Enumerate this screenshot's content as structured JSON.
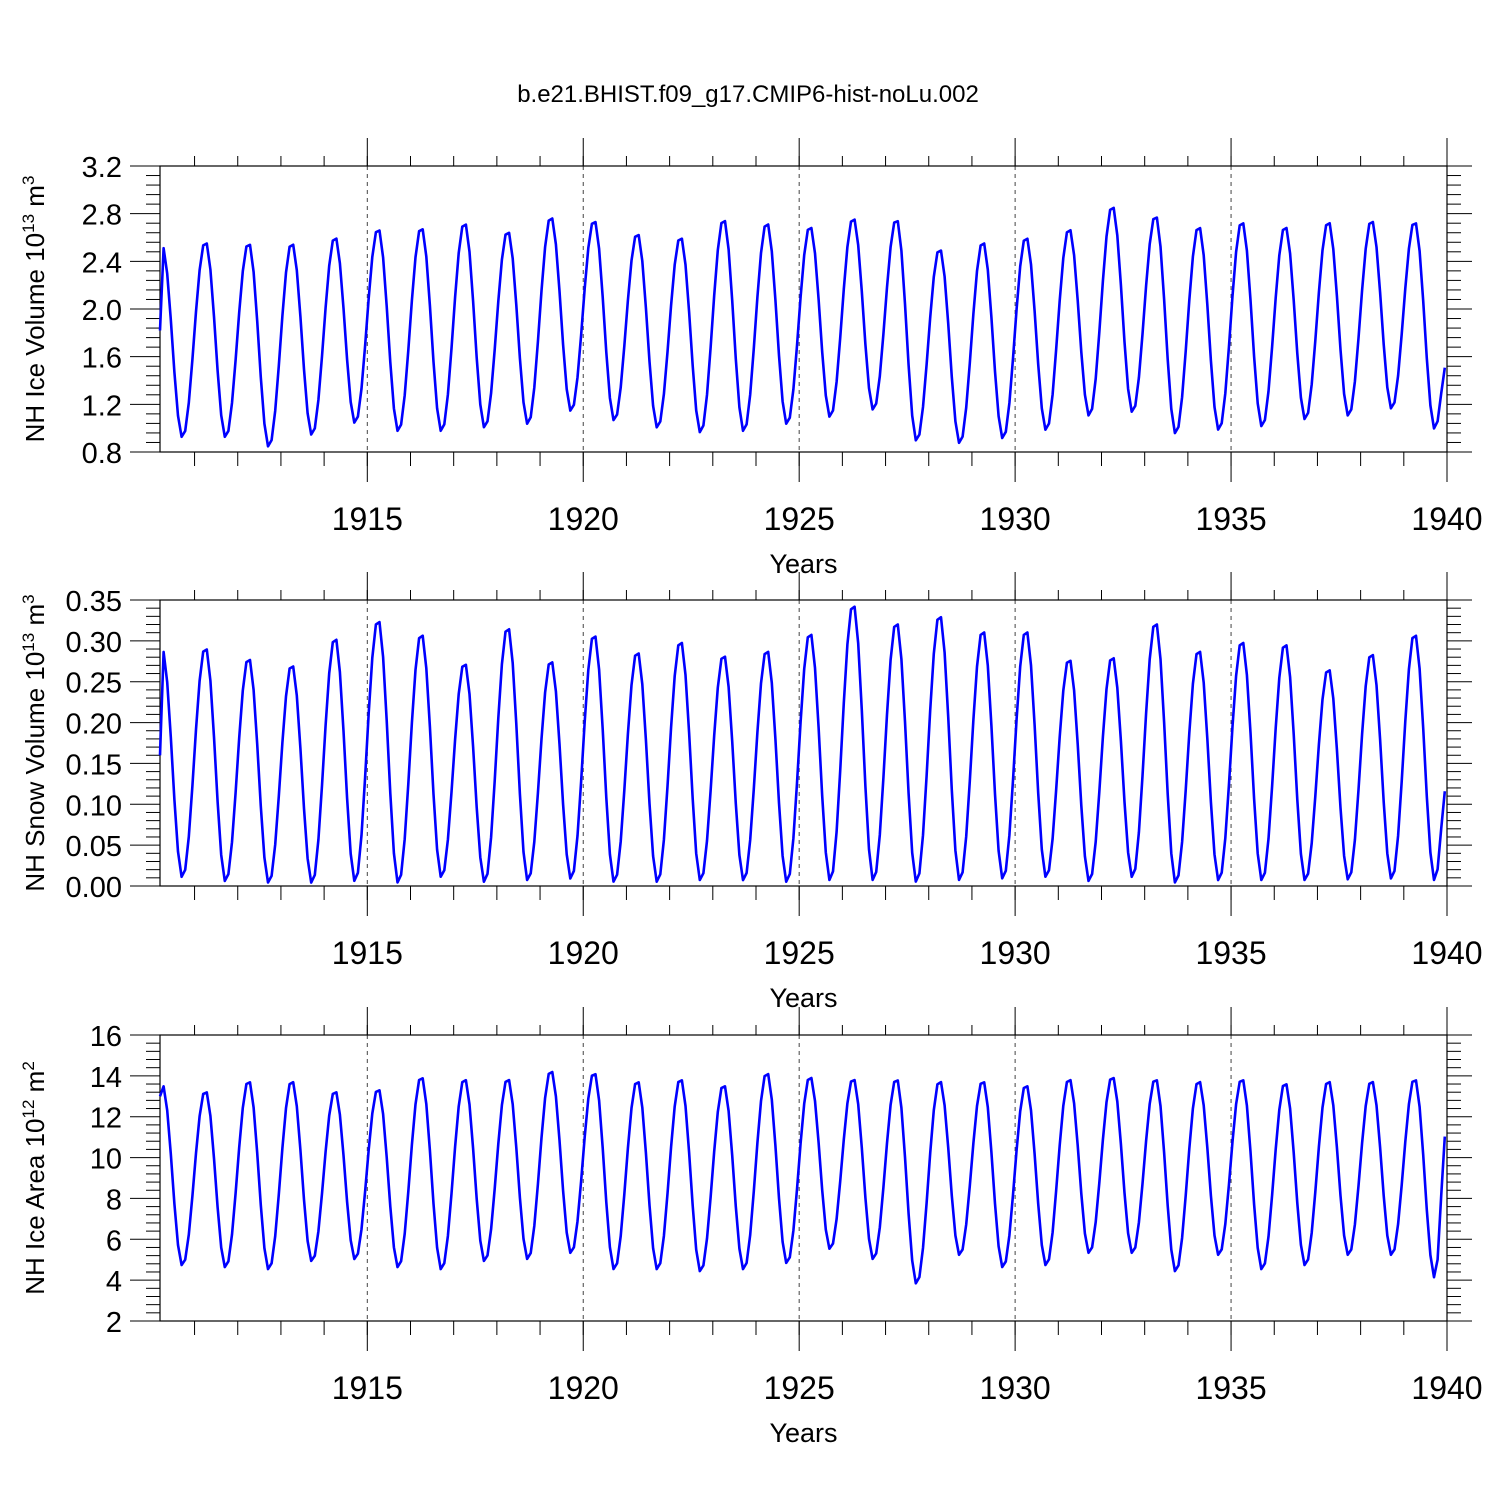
{
  "chart_data": {
    "title": "b.e21.BHIST.f09_g17.CMIP6-hist-noLu.002",
    "panels": [
      {
        "type": "line",
        "ylabel": "NH Ice Volume 10",
        "ylabel_exp": "13",
        "ylabel_unit": "m",
        "ylabel_unit_exp": "3",
        "xlabel": "Years",
        "xlim": [
          1910.2,
          1940.0
        ],
        "ylim": [
          0.8,
          3.2
        ],
        "yticks": [
          0.8,
          1.2,
          1.6,
          2.0,
          2.4,
          2.8,
          3.2
        ],
        "ytick_labels": [
          "0.8",
          "1.2",
          "1.6",
          "2.0",
          "2.4",
          "2.8",
          "3.2"
        ],
        "xticks": [
          1915,
          1920,
          1925,
          1930,
          1935,
          1940
        ],
        "xtick_labels": [
          "1915",
          "1920",
          "1925",
          "1930",
          "1935",
          "1940"
        ],
        "ref_lines_x": [
          1915,
          1920,
          1925,
          1930,
          1935
        ],
        "start": 1910.2,
        "first_value": 1.82,
        "last_value": 1.55,
        "years": [
          {
            "peak": 2.53,
            "trough": 0.92
          },
          {
            "peak": 2.57,
            "trough": 0.92
          },
          {
            "peak": 2.56,
            "trough": 0.84
          },
          {
            "peak": 2.56,
            "trough": 0.94
          },
          {
            "peak": 2.61,
            "trough": 1.04
          },
          {
            "peak": 2.68,
            "trough": 0.97
          },
          {
            "peak": 2.69,
            "trough": 0.97
          },
          {
            "peak": 2.73,
            "trough": 1.0
          },
          {
            "peak": 2.66,
            "trough": 1.03
          },
          {
            "peak": 2.78,
            "trough": 1.14
          },
          {
            "peak": 2.75,
            "trough": 1.06
          },
          {
            "peak": 2.64,
            "trough": 1.0
          },
          {
            "peak": 2.61,
            "trough": 0.96
          },
          {
            "peak": 2.76,
            "trough": 0.97
          },
          {
            "peak": 2.73,
            "trough": 1.03
          },
          {
            "peak": 2.7,
            "trough": 1.09
          },
          {
            "peak": 2.77,
            "trough": 1.15
          },
          {
            "peak": 2.76,
            "trough": 0.89
          },
          {
            "peak": 2.51,
            "trough": 0.87
          },
          {
            "peak": 2.57,
            "trough": 0.91
          },
          {
            "peak": 2.61,
            "trough": 0.98
          },
          {
            "peak": 2.68,
            "trough": 1.1
          },
          {
            "peak": 2.87,
            "trough": 1.13
          },
          {
            "peak": 2.79,
            "trough": 0.95
          },
          {
            "peak": 2.7,
            "trough": 0.98
          },
          {
            "peak": 2.74,
            "trough": 1.01
          },
          {
            "peak": 2.7,
            "trough": 1.07
          },
          {
            "peak": 2.74,
            "trough": 1.1
          },
          {
            "peak": 2.75,
            "trough": 1.16
          },
          {
            "peak": 2.74,
            "trough": 0.99
          }
        ]
      },
      {
        "type": "line",
        "ylabel": "NH Snow Volume 10",
        "ylabel_exp": "13",
        "ylabel_unit": "m",
        "ylabel_unit_exp": "3",
        "xlabel": "Years",
        "xlim": [
          1910.2,
          1940.0
        ],
        "ylim": [
          0.0,
          0.35
        ],
        "yticks": [
          0.0,
          0.05,
          0.1,
          0.15,
          0.2,
          0.25,
          0.3,
          0.35
        ],
        "ytick_labels": [
          "0.00",
          "0.05",
          "0.10",
          "0.15",
          "0.20",
          "0.25",
          "0.30",
          "0.35"
        ],
        "xticks": [
          1915,
          1920,
          1925,
          1930,
          1935,
          1940
        ],
        "xtick_labels": [
          "1915",
          "1920",
          "1925",
          "1930",
          "1935",
          "1940"
        ],
        "ref_lines_x": [
          1915,
          1920,
          1925,
          1930,
          1935
        ],
        "start": 1910.2,
        "first_value": 0.16,
        "last_value": 0.125,
        "years": [
          {
            "peak": 0.29,
            "trough": 0.01
          },
          {
            "peak": 0.293,
            "trough": 0.005
          },
          {
            "peak": 0.28,
            "trough": 0.003
          },
          {
            "peak": 0.272,
            "trough": 0.003
          },
          {
            "peak": 0.305,
            "trough": 0.005
          },
          {
            "peak": 0.327,
            "trough": 0.003
          },
          {
            "peak": 0.31,
            "trough": 0.01
          },
          {
            "peak": 0.274,
            "trough": 0.004
          },
          {
            "peak": 0.318,
            "trough": 0.006
          },
          {
            "peak": 0.277,
            "trough": 0.008
          },
          {
            "peak": 0.309,
            "trough": 0.004
          },
          {
            "peak": 0.288,
            "trough": 0.004
          },
          {
            "peak": 0.301,
            "trough": 0.006
          },
          {
            "peak": 0.284,
            "trough": 0.006
          },
          {
            "peak": 0.29,
            "trough": 0.004
          },
          {
            "peak": 0.311,
            "trough": 0.006
          },
          {
            "peak": 0.346,
            "trough": 0.006
          },
          {
            "peak": 0.324,
            "trough": 0.004
          },
          {
            "peak": 0.333,
            "trough": 0.006
          },
          {
            "peak": 0.314,
            "trough": 0.008
          },
          {
            "peak": 0.314,
            "trough": 0.01
          },
          {
            "peak": 0.279,
            "trough": 0.005
          },
          {
            "peak": 0.282,
            "trough": 0.01
          },
          {
            "peak": 0.324,
            "trough": 0.003
          },
          {
            "peak": 0.29,
            "trough": 0.006
          },
          {
            "peak": 0.301,
            "trough": 0.006
          },
          {
            "peak": 0.298,
            "trough": 0.006
          },
          {
            "peak": 0.267,
            "trough": 0.007
          },
          {
            "peak": 0.286,
            "trough": 0.008
          },
          {
            "peak": 0.31,
            "trough": 0.006
          }
        ]
      },
      {
        "type": "line",
        "ylabel": "NH Ice Area 10",
        "ylabel_exp": "12",
        "ylabel_unit": "m",
        "ylabel_unit_exp": "2",
        "xlabel": "Years",
        "xlim": [
          1910.2,
          1940.0
        ],
        "ylim": [
          2,
          16
        ],
        "yticks": [
          2,
          4,
          6,
          8,
          10,
          12,
          14,
          16
        ],
        "ytick_labels": [
          "2",
          "4",
          "6",
          "8",
          "10",
          "12",
          "14",
          "16"
        ],
        "xticks": [
          1915,
          1920,
          1925,
          1930,
          1935,
          1940
        ],
        "xtick_labels": [
          "1915",
          "1920",
          "1925",
          "1930",
          "1935",
          "1940"
        ],
        "ref_lines_x": [
          1915,
          1920,
          1925,
          1930,
          1935
        ],
        "start": 1910.2,
        "first_value": 13.0,
        "last_value": 11.6,
        "years": [
          {
            "peak": 13.6,
            "trough": 4.7
          },
          {
            "peak": 13.3,
            "trough": 4.6
          },
          {
            "peak": 13.8,
            "trough": 4.5
          },
          {
            "peak": 13.8,
            "trough": 4.9
          },
          {
            "peak": 13.3,
            "trough": 5.0
          },
          {
            "peak": 13.4,
            "trough": 4.6
          },
          {
            "peak": 14.0,
            "trough": 4.5
          },
          {
            "peak": 13.9,
            "trough": 4.9
          },
          {
            "peak": 13.9,
            "trough": 5.0
          },
          {
            "peak": 14.3,
            "trough": 5.3
          },
          {
            "peak": 14.2,
            "trough": 4.5
          },
          {
            "peak": 13.8,
            "trough": 4.5
          },
          {
            "peak": 13.9,
            "trough": 4.4
          },
          {
            "peak": 13.6,
            "trough": 4.5
          },
          {
            "peak": 14.2,
            "trough": 4.8
          },
          {
            "peak": 14.0,
            "trough": 5.5
          },
          {
            "peak": 13.9,
            "trough": 5.0
          },
          {
            "peak": 13.9,
            "trough": 3.8
          },
          {
            "peak": 13.8,
            "trough": 5.2
          },
          {
            "peak": 13.8,
            "trough": 4.6
          },
          {
            "peak": 13.6,
            "trough": 4.7
          },
          {
            "peak": 13.9,
            "trough": 5.3
          },
          {
            "peak": 14.0,
            "trough": 5.3
          },
          {
            "peak": 13.9,
            "trough": 4.4
          },
          {
            "peak": 13.8,
            "trough": 5.2
          },
          {
            "peak": 13.9,
            "trough": 4.5
          },
          {
            "peak": 13.7,
            "trough": 4.7
          },
          {
            "peak": 13.8,
            "trough": 5.2
          },
          {
            "peak": 13.8,
            "trough": 5.2
          },
          {
            "peak": 13.9,
            "trough": 4.1
          }
        ]
      }
    ]
  },
  "colors": {
    "series": "#0000ff",
    "axis": "#000000",
    "ref_line": "#444444"
  }
}
